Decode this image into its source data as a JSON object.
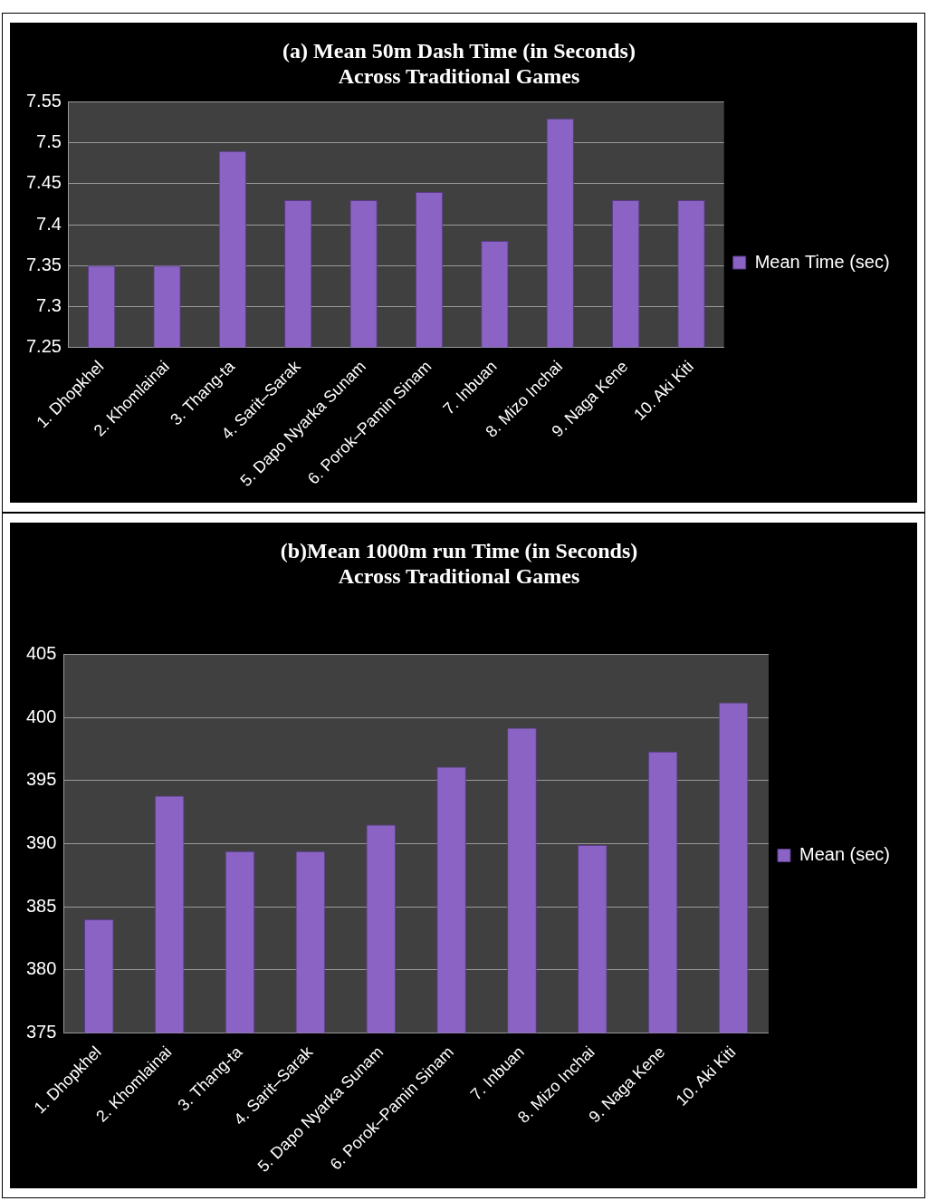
{
  "chart_data": [
    {
      "type": "bar",
      "title": "(a) Mean 50m Dash Time (in Seconds) Across Traditional Games",
      "categories": [
        "1. Dhopkhel",
        "2. Khomlainai",
        "3. Thang-ta",
        "4. Sarit–Sarak",
        "5. Dapo Nyarka Sunam",
        "6. Porok–Pamin Sinam",
        "7. Inbuan",
        "8. Mizo Inchai",
        "9. Naga Kene",
        "10. Aki Kiti"
      ],
      "series": [
        {
          "name": "Mean Time (sec)",
          "color": "#8a63c4",
          "values": [
            7.35,
            7.35,
            7.49,
            7.43,
            7.43,
            7.44,
            7.38,
            7.53,
            7.43,
            7.43
          ]
        }
      ],
      "ylim": [
        7.25,
        7.55
      ],
      "yticks": [
        7.25,
        7.3,
        7.35,
        7.4,
        7.45,
        7.5,
        7.55
      ],
      "grid": "y",
      "legend": "right"
    },
    {
      "type": "bar",
      "title": "(b)Mean 1000m run Time (in Seconds) Across Traditional Games",
      "categories": [
        "1. Dhopkhel",
        "2. Khomlainai",
        "3. Thang-ta",
        "4. Sarit–Sarak",
        "5. Dapo Nyarka Sunam",
        "6. Porok–Pamin Sinam",
        "7. Inbuan",
        "8. Mizo Inchai",
        "9. Naga Kene",
        "10. Aki Kiti"
      ],
      "series": [
        {
          "name": "Mean (sec)",
          "color": "#8a63c4",
          "values": [
            384,
            393.8,
            389.4,
            389.4,
            391.5,
            396.1,
            399.2,
            389.9,
            397.3,
            401.2
          ]
        }
      ],
      "ylim": [
        375,
        405
      ],
      "yticks": [
        375,
        380,
        385,
        390,
        395,
        400,
        405
      ],
      "grid": "y",
      "legend": "right"
    }
  ]
}
